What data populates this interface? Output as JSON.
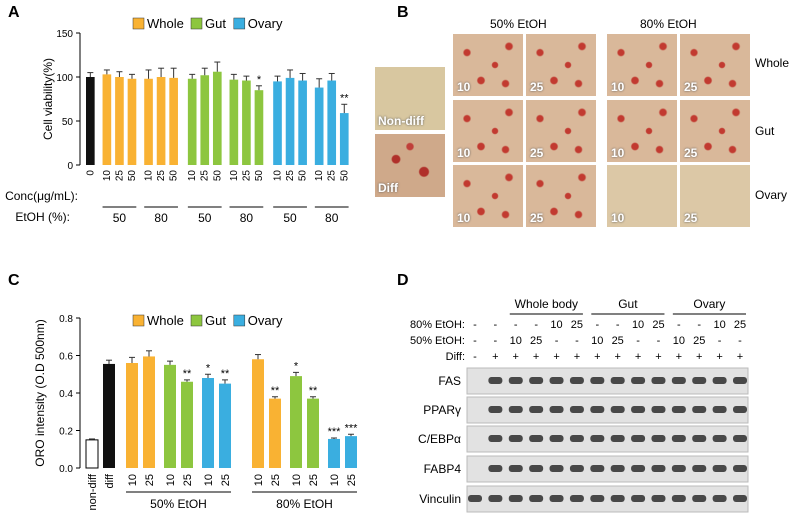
{
  "panels": {
    "a": "A",
    "b": "B",
    "c": "C",
    "d": "D"
  },
  "colors": {
    "whole": "#F9B233",
    "gut": "#8DC63F",
    "ovary": "#3AAEE0",
    "black": "#111111",
    "white": "#ffffff"
  },
  "legend": [
    {
      "name": "Whole",
      "color": "#F9B233"
    },
    {
      "name": "Gut",
      "color": "#8DC63F"
    },
    {
      "name": "Ovary",
      "color": "#3AAEE0"
    }
  ],
  "chart_data": [
    {
      "type": "bar",
      "panel": "A",
      "ylabel": "Cell viability(%)",
      "ylim": [
        0,
        150
      ],
      "yticks": [
        "0",
        "50",
        "100",
        "150"
      ],
      "conc_label": "Conc(μg/mL):",
      "etoh_label": "EtOH (%):",
      "categories": [
        "0",
        "10",
        "25",
        "50",
        "10",
        "25",
        "50",
        "10",
        "25",
        "50",
        "10",
        "25",
        "50",
        "10",
        "25",
        "50",
        "10",
        "25",
        "50"
      ],
      "groups": [
        "control",
        "whole",
        "whole",
        "whole",
        "whole",
        "whole",
        "whole",
        "gut",
        "gut",
        "gut",
        "gut",
        "gut",
        "gut",
        "ovary",
        "ovary",
        "ovary",
        "ovary",
        "ovary",
        "ovary"
      ],
      "values": [
        100,
        103,
        100,
        98,
        98,
        100,
        99,
        98,
        102,
        106,
        97,
        96,
        85,
        95,
        99,
        96,
        88,
        96,
        59
      ],
      "errors": [
        5,
        5,
        6,
        5,
        10,
        10,
        11,
        5,
        8,
        11,
        6,
        5,
        5,
        6,
        9,
        8,
        10,
        8,
        10
      ],
      "significance": [
        "",
        "",
        "",
        "",
        "",
        "",
        "",
        "",
        "",
        "",
        "",
        "",
        "*",
        "",
        "",
        "",
        "",
        "",
        "**"
      ],
      "etoh_groups": [
        "50",
        "80",
        "50",
        "80",
        "50",
        "80"
      ]
    },
    {
      "type": "bar",
      "panel": "C",
      "ylabel": "ORO intensity (O.D 500nm)",
      "ylim": [
        0,
        0.8
      ],
      "yticks": [
        "0.0",
        "0.2",
        "0.4",
        "0.6",
        "0.8"
      ],
      "categories": [
        "non-diff",
        "diff",
        "10",
        "25",
        "10",
        "25",
        "10",
        "25",
        "10",
        "25",
        "10",
        "25",
        "10",
        "25"
      ],
      "groups": [
        "nondiff",
        "diff",
        "whole",
        "whole",
        "gut",
        "gut",
        "ovary",
        "ovary",
        "whole",
        "whole",
        "gut",
        "gut",
        "ovary",
        "ovary"
      ],
      "values": [
        0.15,
        0.555,
        0.56,
        0.595,
        0.55,
        0.46,
        0.48,
        0.45,
        0.58,
        0.37,
        0.49,
        0.37,
        0.155,
        0.17
      ],
      "errors": [
        0.005,
        0.02,
        0.03,
        0.03,
        0.02,
        0.01,
        0.02,
        0.02,
        0.025,
        0.01,
        0.02,
        0.01,
        0.005,
        0.01
      ],
      "significance": [
        "",
        "",
        "",
        "",
        "",
        "**",
        "*",
        "**",
        "",
        "**",
        "*",
        "**",
        "***",
        "***"
      ],
      "etoh_groups": [
        "50% EtOH",
        "80% EtOH"
      ]
    }
  ],
  "panel_b": {
    "col_headers": [
      "50% EtOH",
      "80% EtOH"
    ],
    "row_labels": [
      "Whole",
      "Gut",
      "Ovary"
    ],
    "nondiff": "Non-diff",
    "diff": "Diff",
    "conc": [
      "10",
      "25"
    ]
  },
  "panel_d": {
    "group_headers": [
      "Whole body",
      "Gut",
      "Ovary"
    ],
    "row_80_label": "80% EtOH:",
    "row_50_label": "50% EtOH:",
    "row_diff_label": "Diff:",
    "row_80": [
      "-",
      "-",
      "-",
      "-",
      "10",
      "25",
      "-",
      "-",
      "10",
      "25",
      "-",
      "-",
      "10",
      "25"
    ],
    "row_50": [
      "-",
      "-",
      "10",
      "25",
      "-",
      "-",
      "10",
      "25",
      "-",
      "-",
      "10",
      "25",
      "-",
      "-"
    ],
    "row_diff": [
      "-",
      "+",
      "+",
      "+",
      "+",
      "+",
      "+",
      "+",
      "+",
      "+",
      "+",
      "+",
      "+",
      "+"
    ],
    "bands": [
      "FAS",
      "PPARγ",
      "C/EBPα",
      "FABP4",
      "Vinculin"
    ]
  }
}
